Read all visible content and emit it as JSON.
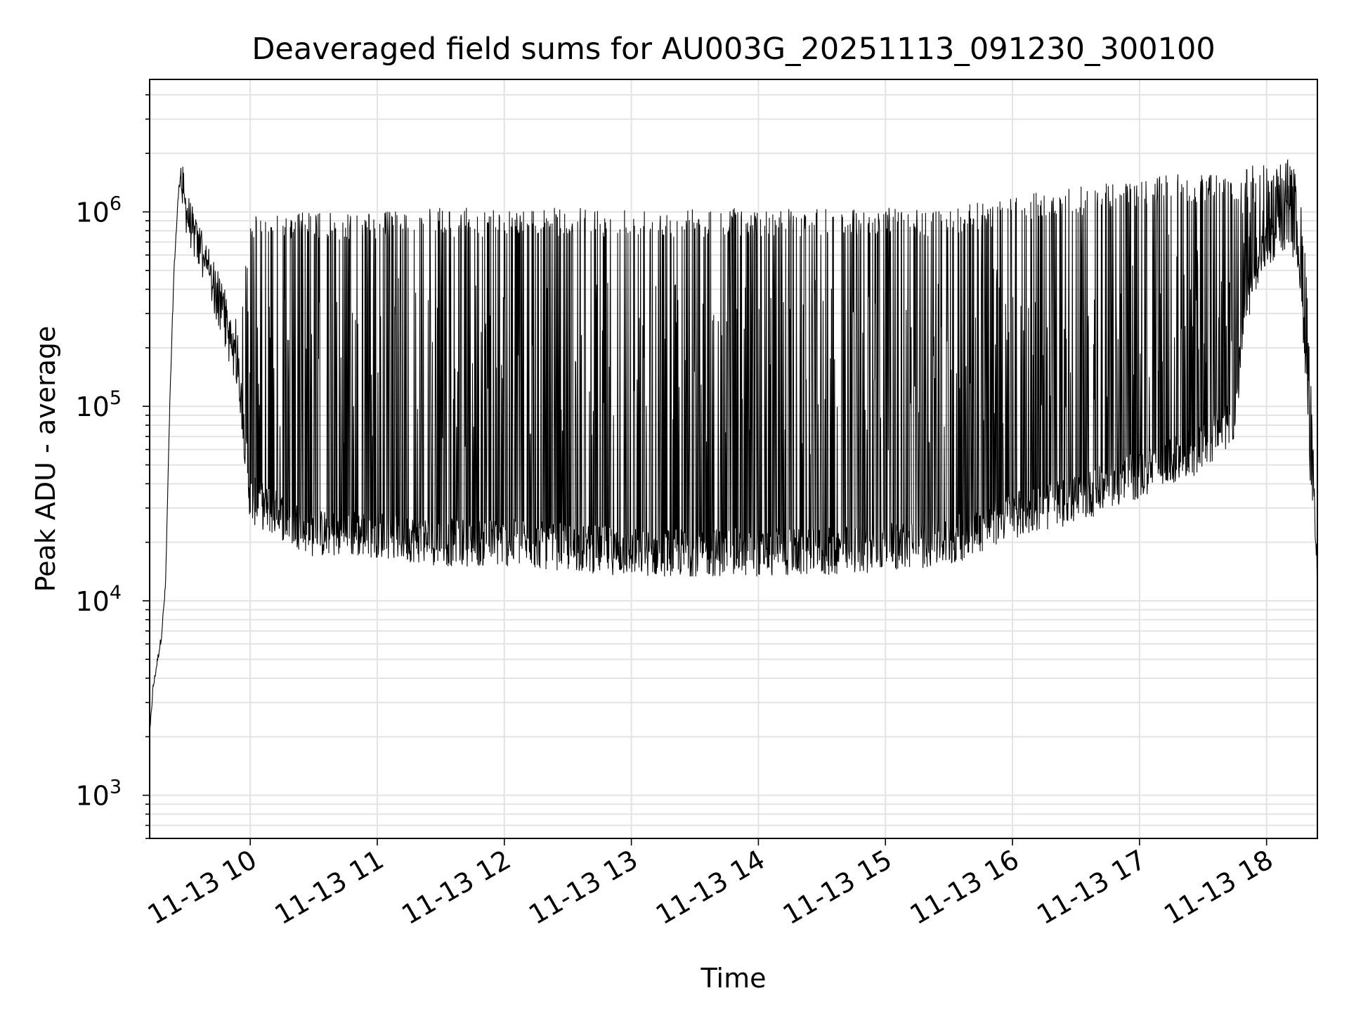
{
  "chart_data": {
    "type": "line",
    "title": "Deaveraged field sums for AU003G_20251113_091230_300100",
    "xlabel": "Time",
    "ylabel": "Peak ADU - average",
    "y_scale": "log",
    "ylim": [
      600,
      4800000
    ],
    "xlim": [
      "2025-11-13 09:12:30",
      "2025-11-13 18:24:00"
    ],
    "grid": true,
    "line_color": "#000000",
    "x_ticks": [
      {
        "time": "2025-11-13 10:00",
        "label": "11-13 10"
      },
      {
        "time": "2025-11-13 11:00",
        "label": "11-13 11"
      },
      {
        "time": "2025-11-13 12:00",
        "label": "11-13 12"
      },
      {
        "time": "2025-11-13 13:00",
        "label": "11-13 13"
      },
      {
        "time": "2025-11-13 14:00",
        "label": "11-13 14"
      },
      {
        "time": "2025-11-13 15:00",
        "label": "11-13 15"
      },
      {
        "time": "2025-11-13 16:00",
        "label": "11-13 16"
      },
      {
        "time": "2025-11-13 17:00",
        "label": "11-13 17"
      },
      {
        "time": "2025-11-13 18:00",
        "label": "11-13 18"
      }
    ],
    "y_ticks": [
      {
        "value": 1000,
        "base": "10",
        "exp": "3"
      },
      {
        "value": 10000,
        "base": "10",
        "exp": "4"
      },
      {
        "value": 100000,
        "base": "10",
        "exp": "5"
      },
      {
        "value": 1000000,
        "base": "10",
        "exp": "6"
      }
    ],
    "series": [
      {
        "envelope": {
          "x": [
            "2025-11-13 09:12:30",
            "2025-11-13 09:14",
            "2025-11-13 09:16",
            "2025-11-13 09:18",
            "2025-11-13 09:20",
            "2025-11-13 09:22",
            "2025-11-13 09:24",
            "2025-11-13 09:26",
            "2025-11-13 09:27",
            "2025-11-13 09:28",
            "2025-11-13 09:29",
            "2025-11-13 09:30",
            "2025-11-13 09:35",
            "2025-11-13 09:40",
            "2025-11-13 09:45",
            "2025-11-13 09:50",
            "2025-11-13 09:55",
            "2025-11-13 10:00",
            "2025-11-13 10:30",
            "2025-11-13 11:00",
            "2025-11-13 11:30",
            "2025-11-13 12:00",
            "2025-11-13 12:30",
            "2025-11-13 13:00",
            "2025-11-13 13:30",
            "2025-11-13 14:00",
            "2025-11-13 14:30",
            "2025-11-13 15:00",
            "2025-11-13 15:30",
            "2025-11-13 16:00",
            "2025-11-13 16:30",
            "2025-11-13 17:00",
            "2025-11-13 17:30",
            "2025-11-13 17:45",
            "2025-11-13 17:50",
            "2025-11-13 18:00",
            "2025-11-13 18:10",
            "2025-11-13 18:15",
            "2025-11-13 18:18",
            "2025-11-13 18:21",
            "2025-11-13 18:24"
          ],
          "high": [
            2000,
            3500,
            4800,
            6500,
            12000,
            100000,
            500000,
            1200000,
            1600000,
            1500000,
            1300000,
            1200000,
            900000,
            700000,
            500000,
            350000,
            250000,
            1000000,
            1000000,
            1000000,
            1050000,
            1050000,
            1050000,
            1050000,
            1050000,
            1050000,
            1050000,
            1050000,
            1050000,
            1200000,
            1350000,
            1500000,
            1600000,
            1600000,
            1700000,
            1800000,
            1900000,
            1700000,
            700000,
            150000,
            12000
          ],
          "low": [
            2000,
            3500,
            4800,
            6500,
            12000,
            100000,
            500000,
            1100000,
            1400000,
            1200000,
            1000000,
            900000,
            600000,
            450000,
            300000,
            200000,
            120000,
            30000,
            20000,
            20000,
            18000,
            18000,
            17000,
            16000,
            16000,
            16000,
            16000,
            17000,
            18000,
            25000,
            30000,
            40000,
            55000,
            80000,
            300000,
            600000,
            800000,
            600000,
            200000,
            40000,
            12000
          ]
        }
      }
    ]
  }
}
